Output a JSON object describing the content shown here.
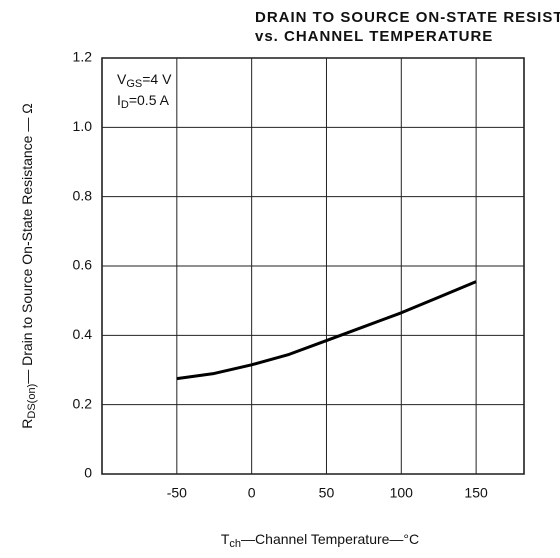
{
  "chart_data": {
    "type": "line",
    "title": [
      "DRAIN TO SOURCE ON-STATE RESISTANCE",
      "vs. CHANNEL TEMPERATURE"
    ],
    "annotations": [
      [
        {
          "text": "V"
        },
        {
          "text": "GS",
          "sub": true
        },
        {
          "text": "=4 V"
        }
      ],
      [
        {
          "text": "I"
        },
        {
          "text": "D",
          "sub": true
        },
        {
          "text": "=0.5 A"
        }
      ]
    ],
    "x_label": [
      {
        "text": "T"
      },
      {
        "text": "ch",
        "sub": true
      },
      {
        "text": "—Channel Temperature—°C"
      }
    ],
    "y_label": [
      {
        "text": "R"
      },
      {
        "text": "DS(on)",
        "sub": true
      },
      {
        "text": "— Drain to Source On-State Resistance — Ω"
      }
    ],
    "x": [
      -50,
      -25,
      0,
      25,
      50,
      75,
      100,
      125,
      150
    ],
    "series": [
      {
        "color": "#000000",
        "values": [
          0.275,
          0.29,
          0.315,
          0.345,
          0.385,
          0.425,
          0.465,
          0.51,
          0.555
        ]
      }
    ],
    "xlim": [
      -100,
      182
    ],
    "xticks": [
      -50,
      0,
      50,
      100,
      150
    ],
    "ylim": [
      0,
      1.2
    ],
    "yticks": [
      0,
      0.2,
      0.4,
      0.6,
      0.8,
      {
        "value": 1,
        "label": "1.0"
      },
      1.2
    ],
    "grid": true
  }
}
